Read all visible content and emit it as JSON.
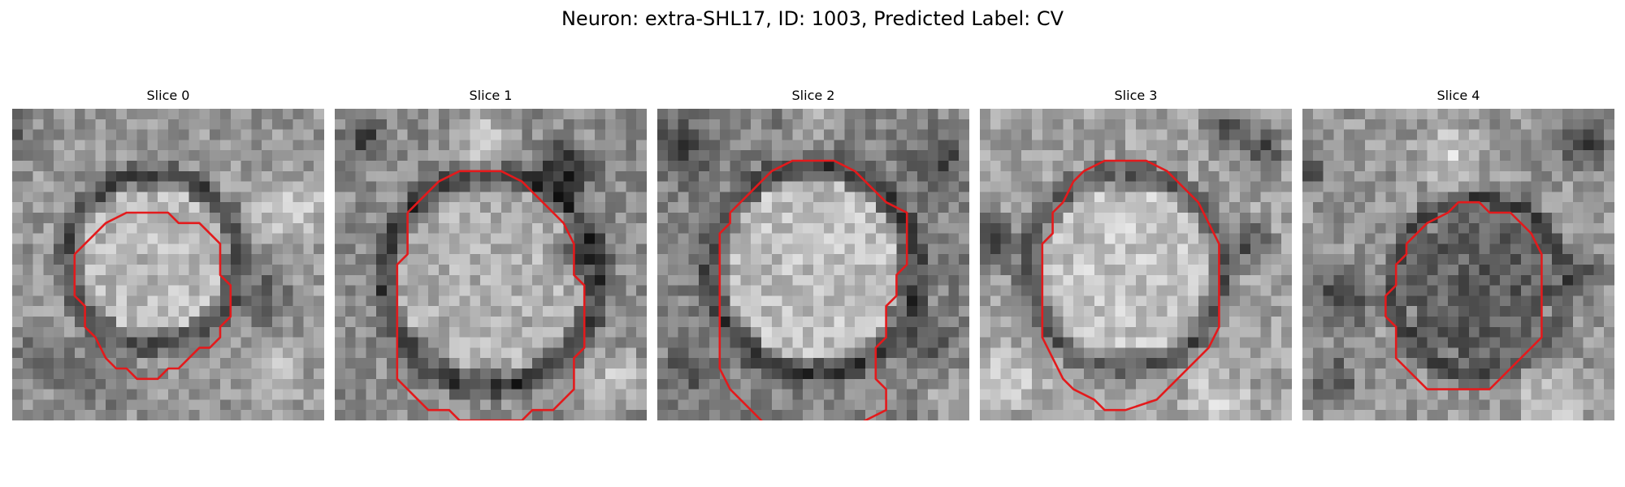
{
  "figure": {
    "title": "Neuron: extra-SHL17, ID: 1003, Predicted Label: CV"
  },
  "slices": [
    {
      "label": "Slice 0"
    },
    {
      "label": "Slice 1"
    },
    {
      "label": "Slice 2"
    },
    {
      "label": "Slice 3"
    },
    {
      "label": "Slice 4"
    }
  ],
  "colors": {
    "contour": "#e31a1c",
    "background": "#ffffff"
  }
}
